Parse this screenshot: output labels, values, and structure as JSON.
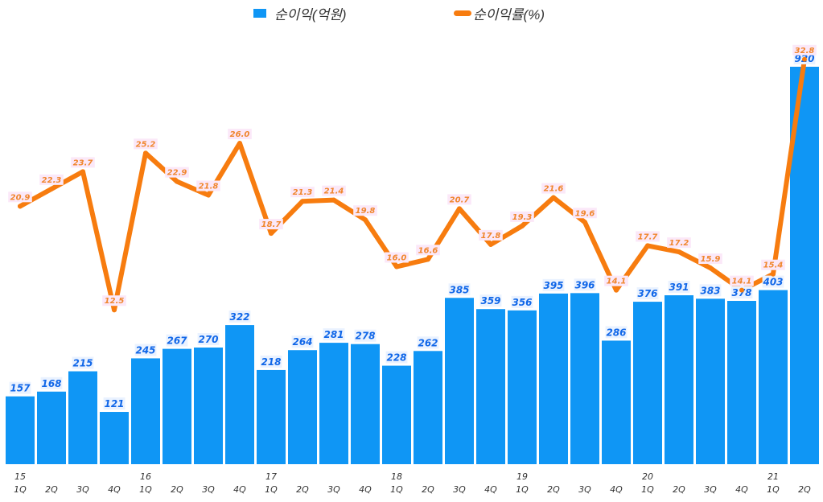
{
  "chart_data": {
    "type": "bar+line",
    "legend_position": "top",
    "grid": false,
    "x_years": [
      "15",
      "",
      "",
      "",
      "16",
      "",
      "",
      "",
      "17",
      "",
      "",
      "",
      "18",
      "",
      "",
      "",
      "19",
      "",
      "",
      "",
      "20",
      "",
      "",
      "",
      "21",
      ""
    ],
    "categories": [
      "1Q",
      "2Q",
      "3Q",
      "4Q",
      "1Q",
      "2Q",
      "3Q",
      "4Q",
      "1Q",
      "2Q",
      "3Q",
      "4Q",
      "1Q",
      "2Q",
      "3Q",
      "4Q",
      "1Q",
      "2Q",
      "3Q",
      "4Q",
      "1Q",
      "2Q",
      "3Q",
      "4Q",
      "1Q",
      "2Q"
    ],
    "series": [
      {
        "name": "순이익(억원)",
        "type": "bar",
        "color": "#0f96f5",
        "axis": "left",
        "ylim": [
          0,
          1000
        ],
        "values": [
          157,
          168,
          215,
          121,
          245,
          267,
          270,
          322,
          218,
          264,
          281,
          278,
          228,
          262,
          385,
          359,
          356,
          395,
          396,
          286,
          376,
          391,
          383,
          378,
          403,
          920
        ]
      },
      {
        "name": "순이익률(%)",
        "type": "line",
        "color": "#f77c0f",
        "axis": "right",
        "ylim": [
          0,
          35
        ],
        "values": [
          20.9,
          22.3,
          23.7,
          12.5,
          25.2,
          22.9,
          21.8,
          26.0,
          18.7,
          21.3,
          21.4,
          19.8,
          16.0,
          16.6,
          20.7,
          17.8,
          19.3,
          21.6,
          19.6,
          14.1,
          17.7,
          17.2,
          15.9,
          14.1,
          15.4,
          32.8
        ]
      }
    ]
  }
}
